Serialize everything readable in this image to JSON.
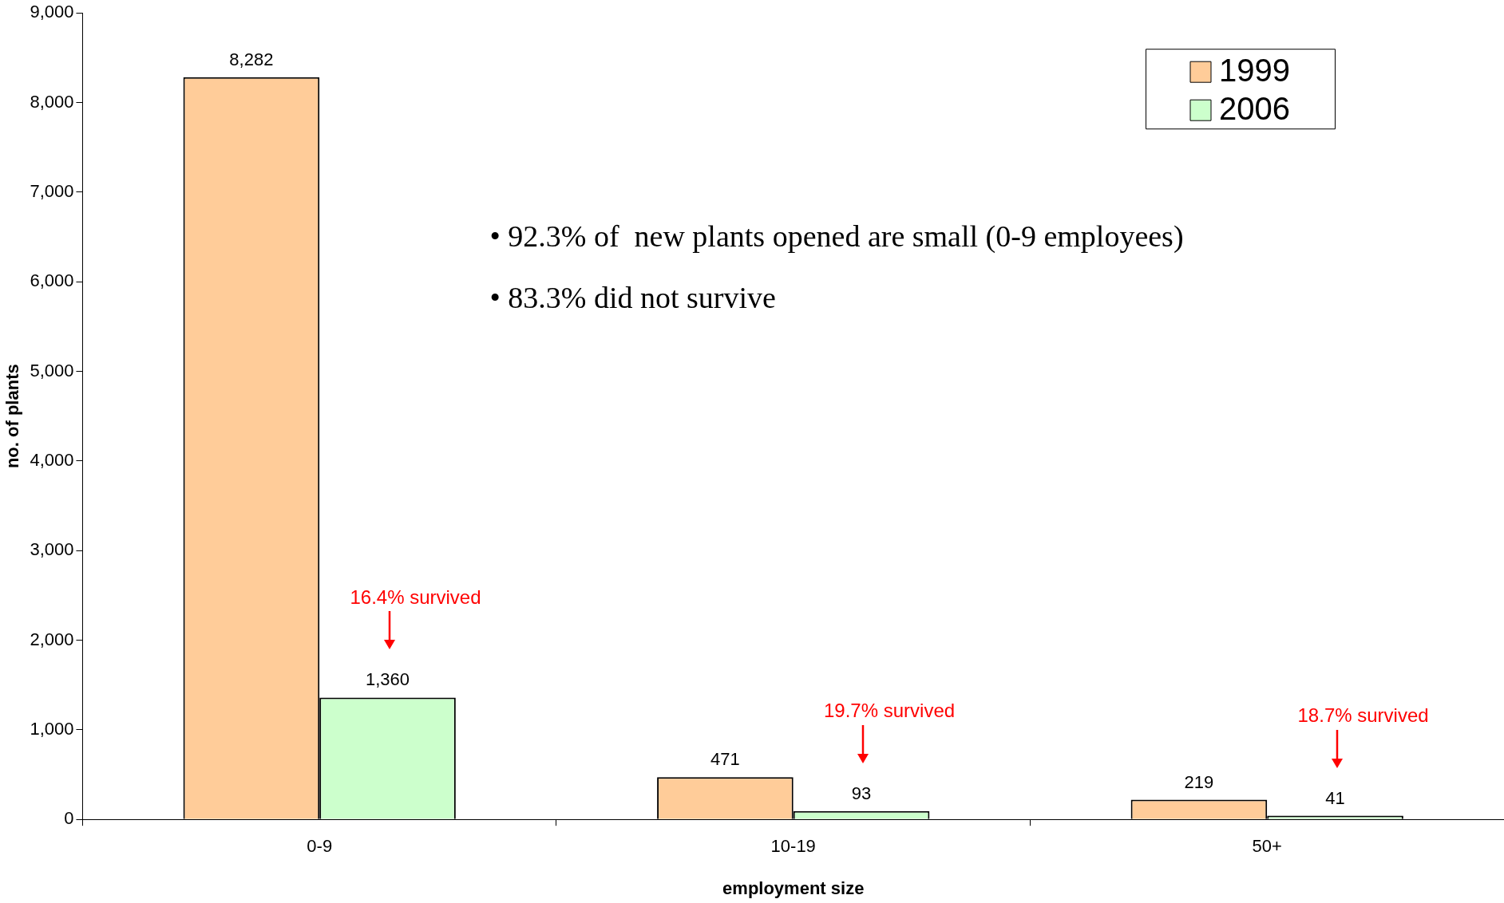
{
  "chart_data": {
    "type": "bar",
    "xlabel": "employment size",
    "ylabel": "no. of plants",
    "categories": [
      "0-9",
      "10-19",
      "50+"
    ],
    "series": [
      {
        "name": "1999",
        "color": "#ffcc99",
        "values": [
          8282,
          471,
          219
        ]
      },
      {
        "name": "2006",
        "color": "#ccffcc",
        "values": [
          1360,
          93,
          41
        ]
      }
    ],
    "ylim": [
      0,
      9000
    ],
    "yticks": [
      {
        "value": 0,
        "label": "0"
      },
      {
        "value": 1000,
        "label": "1,000"
      },
      {
        "value": 2000,
        "label": "2,000"
      },
      {
        "value": 3000,
        "label": "3,000"
      },
      {
        "value": 4000,
        "label": "4,000"
      },
      {
        "value": 5000,
        "label": "5,000"
      },
      {
        "value": 6000,
        "label": "6,000"
      },
      {
        "value": 7000,
        "label": "7,000"
      },
      {
        "value": 8000,
        "label": "8,000"
      },
      {
        "value": 9000,
        "label": "9,000"
      }
    ],
    "value_labels": [
      [
        "8,282",
        "471",
        "219"
      ],
      [
        "1,360",
        "93",
        "41"
      ]
    ],
    "annotations": [
      "• 92.3% of  new plants opened are small (0-9 employees)",
      "• 83.3% did not survive",
      "16.4% survived",
      "19.7% survived",
      "18.7% survived"
    ],
    "grid": false,
    "legend": "top right"
  }
}
